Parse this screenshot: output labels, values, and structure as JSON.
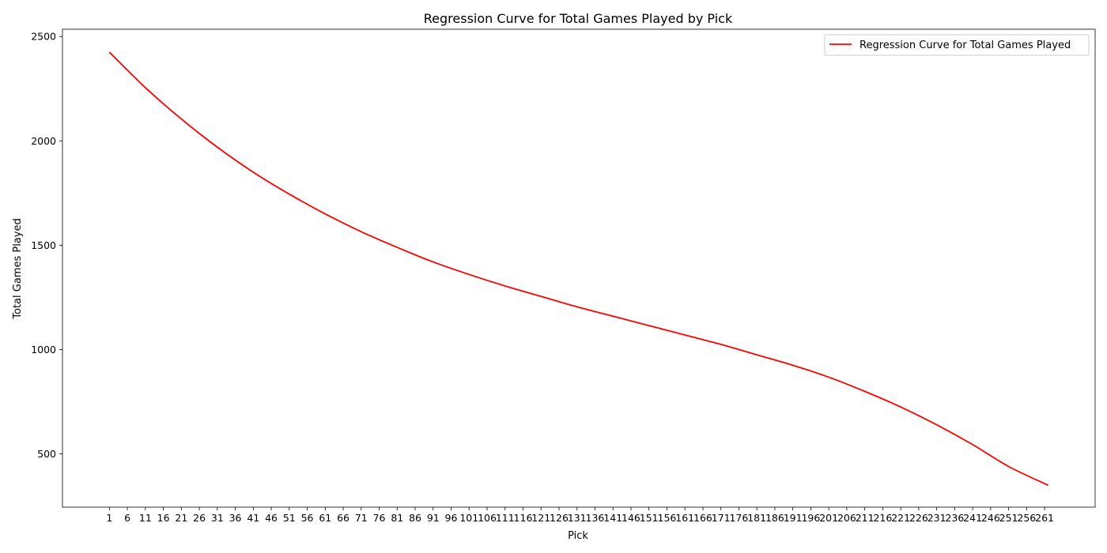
{
  "chart_data": {
    "type": "line",
    "title": "Regression Curve for Total Games Played by Pick",
    "xlabel": "Pick",
    "ylabel": "Total Games Played",
    "xlim": [
      -12.05,
      275.05
    ],
    "ylim": [
      245,
      2535
    ],
    "grid": false,
    "legend_position": "top-right",
    "x_ticks": [
      1,
      6,
      11,
      16,
      21,
      26,
      31,
      36,
      41,
      46,
      51,
      56,
      61,
      66,
      71,
      76,
      81,
      86,
      91,
      96,
      101,
      106,
      111,
      116,
      121,
      126,
      131,
      136,
      141,
      146,
      151,
      156,
      161,
      166,
      171,
      176,
      181,
      186,
      191,
      196,
      201,
      206,
      211,
      216,
      221,
      226,
      231,
      236,
      241,
      246,
      251,
      256,
      261
    ],
    "y_ticks": [
      500,
      1000,
      1500,
      2000,
      2500
    ],
    "series": [
      {
        "name": "Regression Curve for Total Games Played",
        "color": "#ff0000",
        "x": [
          1,
          11,
          21,
          31,
          41,
          51,
          61,
          71,
          81,
          91,
          101,
          111,
          121,
          131,
          141,
          151,
          161,
          171,
          181,
          191,
          201,
          211,
          221,
          231,
          241,
          251,
          262
        ],
        "y": [
          2425,
          2255,
          2105,
          1970,
          1850,
          1745,
          1650,
          1565,
          1490,
          1420,
          1360,
          1305,
          1255,
          1205,
          1160,
          1115,
          1070,
          1025,
          975,
          925,
          868,
          800,
          725,
          640,
          545,
          440,
          350
        ]
      }
    ]
  }
}
